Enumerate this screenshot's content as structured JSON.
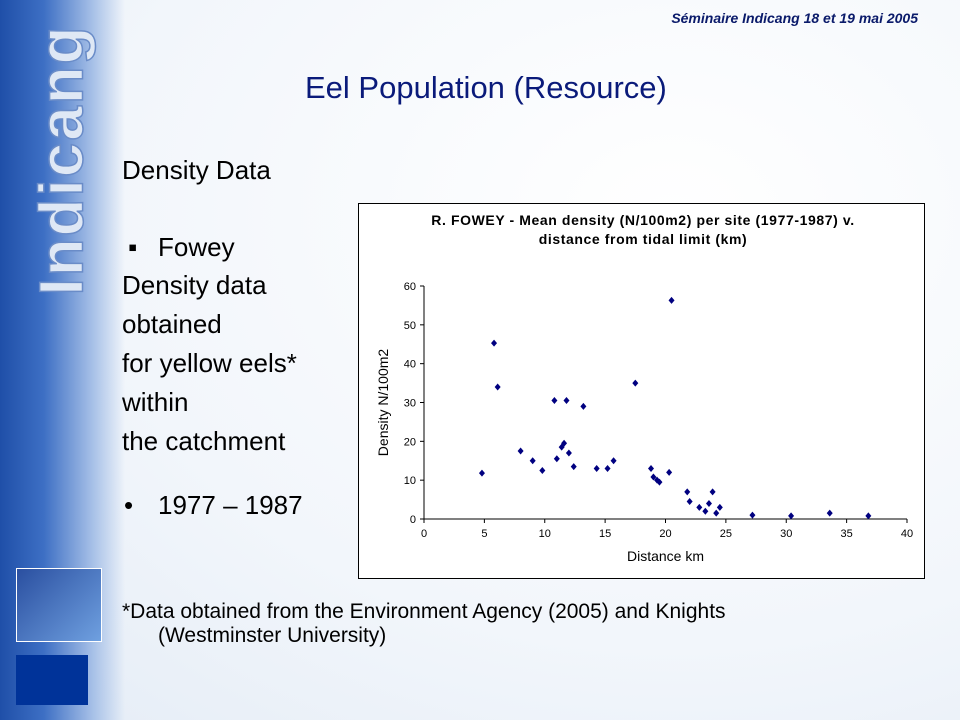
{
  "header": "Séminaire Indicang 18 et 19 mai 2005",
  "brand": "Indicang",
  "title": "Eel Population (Resource)",
  "subtitle": "Density Data",
  "bullet1": "Fowey",
  "lines": [
    "Density data",
    "obtained",
    "for yellow eels*",
    "within",
    "the catchment"
  ],
  "bullet2": "1977 – 1987",
  "footnote": [
    "*Data obtained from the Environment Agency (2005) and Knights",
    "(Westminster University)"
  ],
  "chart_data": {
    "type": "scatter",
    "title": "R. FOWEY - Mean density (N/100m2) per site (1977-1987) v. distance from tidal limit (km)",
    "x_label": "Distance km",
    "y_label": "Density N/100m2",
    "x": [
      4.8,
      5.8,
      6.1,
      8,
      9,
      9.8,
      10.8,
      11,
      11.4,
      11.6,
      11.8,
      12,
      12.4,
      13.2,
      14.3,
      15.2,
      15.7,
      17.5,
      18.8,
      19,
      19.3,
      19.5,
      20.3,
      20.5,
      21.8,
      22,
      22.8,
      23.3,
      23.6,
      23.9,
      24.2,
      24.5,
      27.2,
      30.4,
      33.6,
      36.8
    ],
    "values": [
      11.8,
      45.3,
      34,
      17.5,
      15,
      12.5,
      30.5,
      15.5,
      18.5,
      19.5,
      30.5,
      17,
      13.5,
      29,
      13,
      13,
      15,
      35,
      13,
      10.8,
      10,
      9.5,
      12,
      56.3,
      7,
      4.5,
      3,
      2,
      4,
      7,
      1.5,
      3,
      1,
      0.8,
      1.5,
      0.8
    ],
    "color": "#000080",
    "xlim": [
      0,
      40
    ],
    "xticks": [
      0,
      5,
      10,
      15,
      20,
      25,
      30,
      35,
      40
    ],
    "ylim": [
      0,
      60
    ],
    "yticks": [
      0,
      10,
      20,
      30,
      40,
      50,
      60
    ],
    "grid": false
  }
}
